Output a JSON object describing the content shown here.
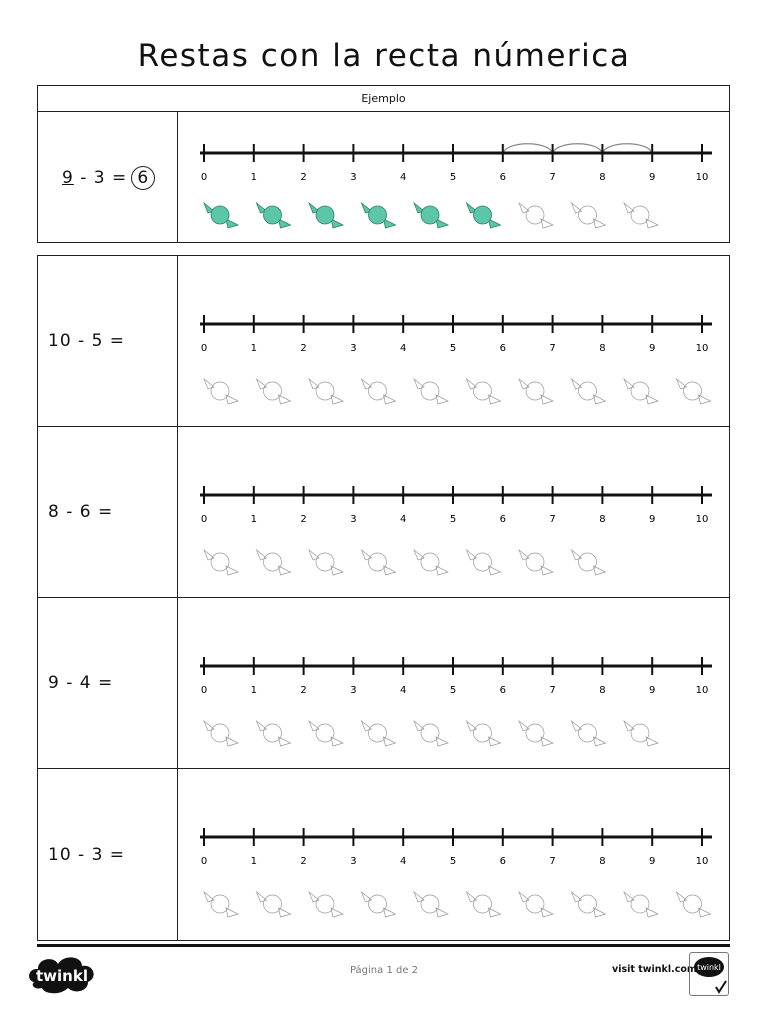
{
  "title": "Restas con la recta númerica",
  "example": {
    "header": "Ejemplo",
    "minuend": "9",
    "rest": " - 3 =",
    "answer": "6",
    "candies_filled": 6,
    "candies_total": 9,
    "jumps": [
      [
        6,
        7
      ],
      [
        7,
        8
      ],
      [
        8,
        9
      ]
    ],
    "candy_color": "#5cc7a8"
  },
  "number_labels": [
    "0",
    "1",
    "2",
    "3",
    "4",
    "5",
    "6",
    "7",
    "8",
    "9",
    "10"
  ],
  "exercises": [
    {
      "equation": "10 - 5 =",
      "candies_total": 10
    },
    {
      "equation": "8 - 6 =",
      "candies_total": 8
    },
    {
      "equation": "9 - 4 =",
      "candies_total": 9
    },
    {
      "equation": "10 - 3 =",
      "candies_total": 10
    }
  ],
  "footer": {
    "logo": "twinkl",
    "page": "Página 1 de 2",
    "visit": "visit twinkl.com",
    "badge": "twinkl Quality Standard Approved"
  }
}
